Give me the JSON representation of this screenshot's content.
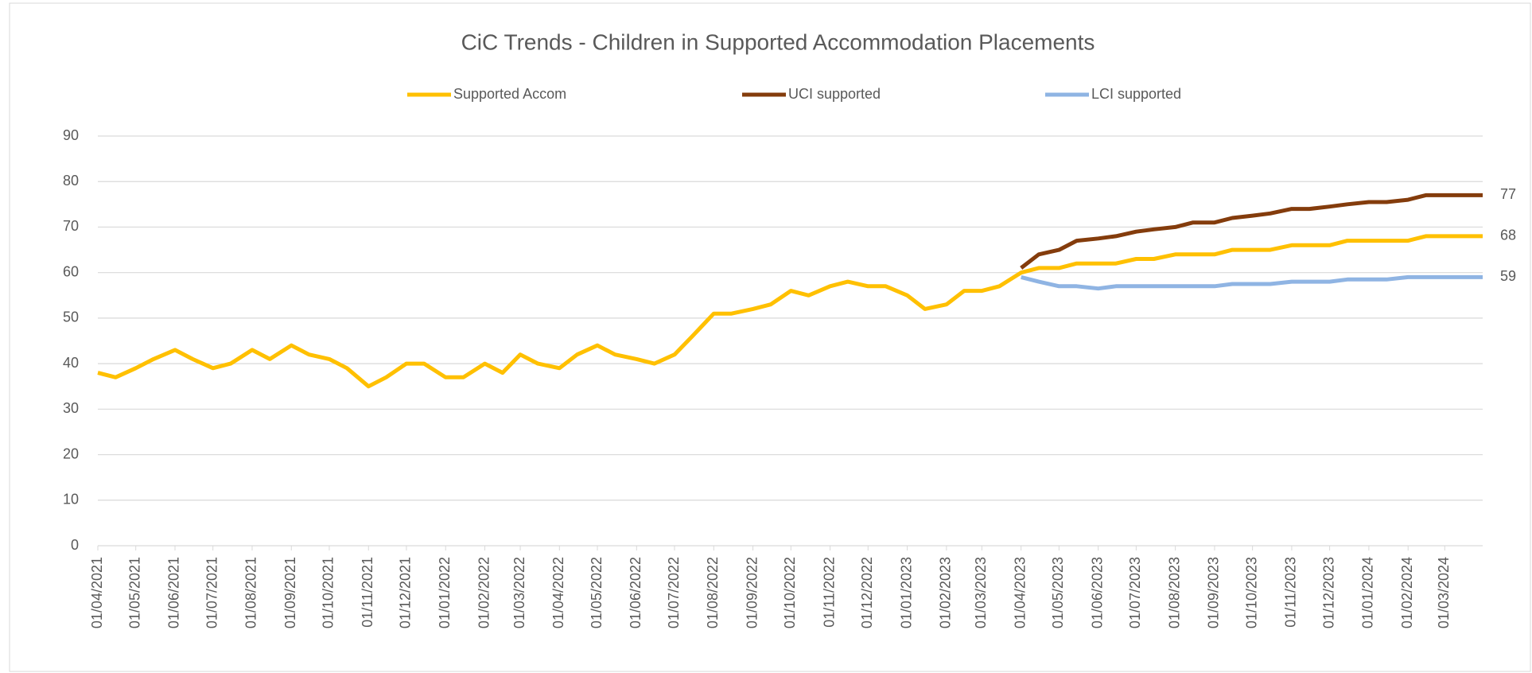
{
  "chart_data": {
    "type": "line",
    "title": "CiC Trends - Children in Supported Accommodation Placements",
    "x": [
      "01/04/2021",
      "15/04/2021",
      "01/05/2021",
      "15/05/2021",
      "01/06/2021",
      "15/06/2021",
      "01/07/2021",
      "15/07/2021",
      "01/08/2021",
      "15/08/2021",
      "01/09/2021",
      "15/09/2021",
      "01/10/2021",
      "15/10/2021",
      "01/11/2021",
      "15/11/2021",
      "01/12/2021",
      "15/12/2021",
      "01/01/2022",
      "15/01/2022",
      "01/02/2022",
      "15/02/2022",
      "01/03/2022",
      "15/03/2022",
      "01/04/2022",
      "15/04/2022",
      "01/05/2022",
      "15/05/2022",
      "01/06/2022",
      "15/06/2022",
      "01/07/2022",
      "15/07/2022",
      "01/08/2022",
      "15/08/2022",
      "01/09/2022",
      "15/09/2022",
      "01/10/2022",
      "15/10/2022",
      "01/11/2022",
      "15/11/2022",
      "01/12/2022",
      "15/12/2022",
      "01/01/2023",
      "15/01/2023",
      "01/02/2023",
      "15/02/2023",
      "01/03/2023",
      "15/03/2023",
      "01/04/2023",
      "15/04/2023",
      "01/05/2023",
      "15/05/2023",
      "01/06/2023",
      "15/06/2023",
      "01/07/2023",
      "15/07/2023",
      "01/08/2023",
      "15/08/2023",
      "01/09/2023",
      "15/09/2023",
      "01/10/2023",
      "15/10/2023",
      "01/11/2023",
      "15/11/2023",
      "01/12/2023",
      "15/12/2023",
      "01/01/2024",
      "15/01/2024",
      "01/02/2024",
      "15/02/2024",
      "01/03/2024",
      "15/03/2024",
      "31/03/2024"
    ],
    "series": [
      {
        "name": "Supported Accom",
        "color": "#ffc000",
        "values": [
          38,
          37,
          39,
          41,
          43,
          41,
          39,
          40,
          43,
          41,
          44,
          42,
          41,
          39,
          35,
          37,
          40,
          40,
          37,
          37,
          40,
          38,
          42,
          40,
          39,
          42,
          44,
          42,
          41,
          40,
          42,
          46,
          51,
          51,
          52,
          53,
          56,
          55,
          57,
          58,
          57,
          57,
          55,
          52,
          53,
          56,
          56,
          57,
          60,
          61,
          61,
          62,
          62,
          62,
          63,
          63,
          64,
          64,
          64,
          65,
          65,
          65,
          66,
          66,
          66,
          67,
          67,
          67,
          67,
          68,
          68,
          68,
          68
        ]
      },
      {
        "name": "UCI supported",
        "color": "#843c0c",
        "values": [
          null,
          null,
          null,
          null,
          null,
          null,
          null,
          null,
          null,
          null,
          null,
          null,
          null,
          null,
          null,
          null,
          null,
          null,
          null,
          null,
          null,
          null,
          null,
          null,
          null,
          null,
          null,
          null,
          null,
          null,
          null,
          null,
          null,
          null,
          null,
          null,
          null,
          null,
          null,
          null,
          null,
          null,
          null,
          null,
          null,
          null,
          null,
          null,
          61,
          64,
          65,
          67,
          67.5,
          68,
          69,
          69.5,
          70,
          71,
          71,
          72,
          72.5,
          73,
          74,
          74,
          74.5,
          75,
          75.5,
          75.5,
          76,
          77,
          77,
          77,
          77
        ]
      },
      {
        "name": "LCI supported",
        "color": "#8fb4e3",
        "values": [
          null,
          null,
          null,
          null,
          null,
          null,
          null,
          null,
          null,
          null,
          null,
          null,
          null,
          null,
          null,
          null,
          null,
          null,
          null,
          null,
          null,
          null,
          null,
          null,
          null,
          null,
          null,
          null,
          null,
          null,
          null,
          null,
          null,
          null,
          null,
          null,
          null,
          null,
          null,
          null,
          null,
          null,
          null,
          null,
          null,
          null,
          null,
          null,
          59,
          58,
          57,
          57,
          56.5,
          57,
          57,
          57,
          57,
          57,
          57,
          57.5,
          57.5,
          57.5,
          58,
          58,
          58,
          58.5,
          58.5,
          58.5,
          59,
          59,
          59,
          59,
          59
        ]
      }
    ],
    "xlim": [
      "01/04/2021",
      "31/03/2024"
    ],
    "xticks": [
      "01/04/2021",
      "01/05/2021",
      "01/06/2021",
      "01/07/2021",
      "01/08/2021",
      "01/09/2021",
      "01/10/2021",
      "01/11/2021",
      "01/12/2021",
      "01/01/2022",
      "01/02/2022",
      "01/03/2022",
      "01/04/2022",
      "01/05/2022",
      "01/06/2022",
      "01/07/2022",
      "01/08/2022",
      "01/09/2022",
      "01/10/2022",
      "01/11/2022",
      "01/12/2022",
      "01/01/2023",
      "01/02/2023",
      "01/03/2023",
      "01/04/2023",
      "01/05/2023",
      "01/06/2023",
      "01/07/2023",
      "01/08/2023",
      "01/09/2023",
      "01/10/2023",
      "01/11/2023",
      "01/12/2023",
      "01/01/2024",
      "01/02/2024",
      "01/03/2024"
    ],
    "ylim": [
      0,
      90
    ],
    "yticks": [
      0,
      10,
      20,
      30,
      40,
      50,
      60,
      70,
      80,
      90
    ],
    "grid": true,
    "legend": "top"
  }
}
